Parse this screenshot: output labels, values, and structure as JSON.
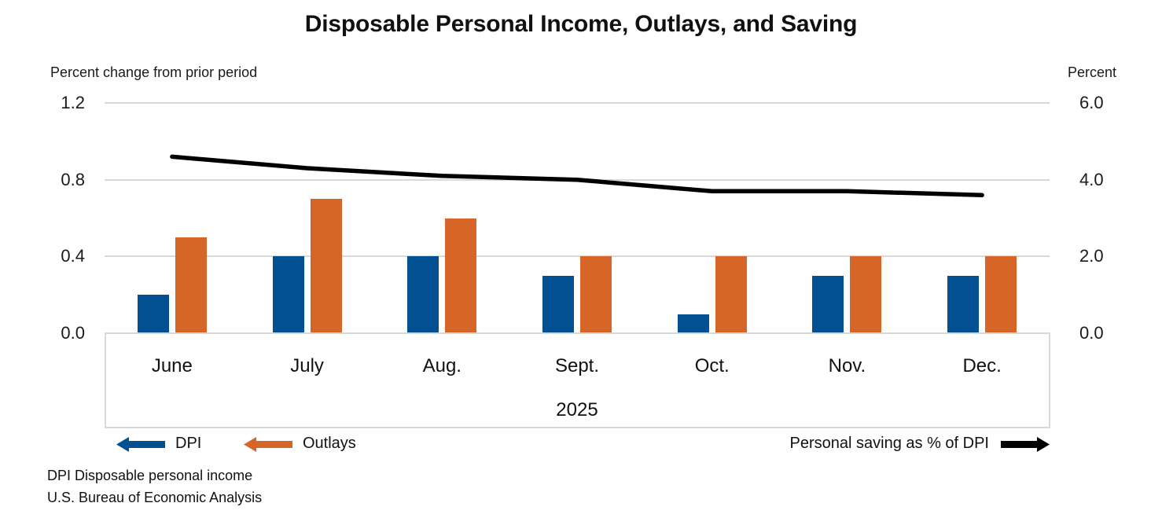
{
  "title": "Disposable Personal Income, Outlays, and Saving",
  "left_axis": {
    "label": "Percent change from prior period",
    "ticks": [
      "1.2",
      "0.8",
      "0.4",
      "0.0"
    ],
    "tick_values": [
      1.2,
      0.8,
      0.4,
      0.0
    ]
  },
  "right_axis": {
    "label": "Percent",
    "ticks": [
      "6.0",
      "4.0",
      "2.0",
      "0.0"
    ],
    "tick_values": [
      6.0,
      4.0,
      2.0,
      0.0
    ]
  },
  "x_axis": {
    "months": [
      "June",
      "July",
      "Aug.",
      "Sept.",
      "Oct.",
      "Nov.",
      "Dec."
    ],
    "year": "2025"
  },
  "legend": {
    "dpi_label": "DPI",
    "outlays_label": "Outlays",
    "saving_label": "Personal saving as % of DPI"
  },
  "footnotes": {
    "line1": "DPI Disposable personal income",
    "line2": "U.S. Bureau of Economic Analysis"
  },
  "colors": {
    "dpi": "#024F92",
    "outlays": "#D56627",
    "saving_line": "#000000",
    "gridline": "#D9D9D9"
  },
  "chart_data": {
    "type": "bar",
    "title": "Disposable Personal Income, Outlays, and Saving",
    "categories": [
      "June",
      "July",
      "Aug.",
      "Sept.",
      "Oct.",
      "Nov.",
      "Dec."
    ],
    "year": "2025",
    "series": [
      {
        "name": "DPI",
        "type": "bar",
        "axis": "left",
        "values": [
          0.2,
          0.4,
          0.4,
          0.3,
          0.1,
          0.3,
          0.3
        ]
      },
      {
        "name": "Outlays",
        "type": "bar",
        "axis": "left",
        "values": [
          0.5,
          0.7,
          0.6,
          0.4,
          0.4,
          0.4,
          0.4
        ]
      },
      {
        "name": "Personal saving as % of DPI",
        "type": "line",
        "axis": "right",
        "values": [
          4.6,
          4.3,
          4.1,
          4.0,
          3.7,
          3.7,
          3.6
        ]
      }
    ],
    "left_ylabel": "Percent change from prior period",
    "right_ylabel": "Percent",
    "left_ylim": [
      0,
      1.2
    ],
    "right_ylim": [
      0,
      6.0
    ],
    "left_ticks": [
      0,
      0.4,
      0.8,
      1.2
    ],
    "right_ticks": [
      0,
      2.0,
      4.0,
      6.0
    ],
    "grid": true,
    "legend_position": "bottom"
  }
}
